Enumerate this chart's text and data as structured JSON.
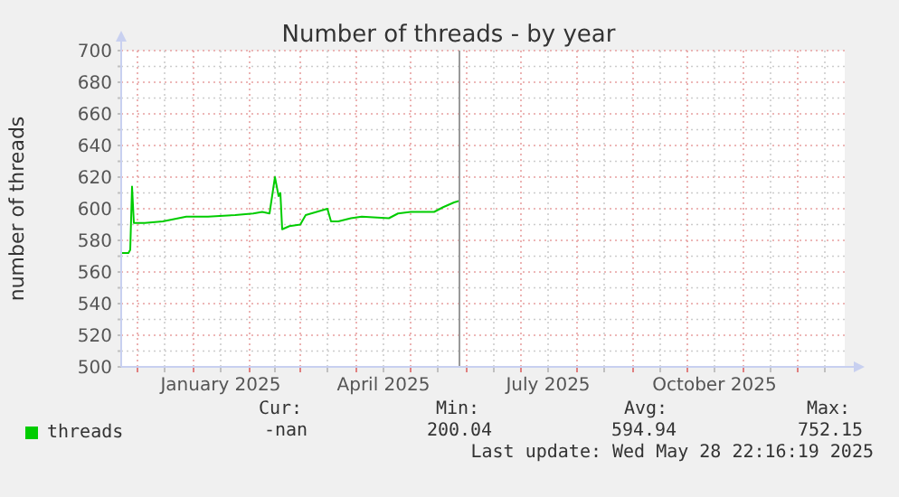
{
  "chart_data": {
    "type": "line",
    "title": "Number of threads - by year",
    "ylabel": "number of threads",
    "x": [
      "2024-11-22",
      "2024-11-26",
      "2024-11-27",
      "2024-11-28",
      "2024-11-29",
      "2024-12-05",
      "2024-12-15",
      "2024-12-28",
      "2025-01-09",
      "2025-01-24",
      "2025-02-03",
      "2025-02-08",
      "2025-02-12",
      "2025-02-15",
      "2025-02-17",
      "2025-02-18",
      "2025-02-19",
      "2025-02-23",
      "2025-03-01",
      "2025-03-04",
      "2025-03-10",
      "2025-03-16",
      "2025-03-18",
      "2025-03-22",
      "2025-03-29",
      "2025-04-04",
      "2025-04-19",
      "2025-04-24",
      "2025-05-01",
      "2025-05-14",
      "2025-05-19",
      "2025-05-25",
      "2025-05-28"
    ],
    "series": [
      {
        "name": "threads",
        "color": "#00cc00",
        "values": [
          572,
          572,
          574,
          614,
          591,
          591,
          592,
          595,
          595,
          596,
          597,
          598,
          597,
          620,
          608,
          610,
          587,
          589,
          590,
          596,
          598,
          600,
          592,
          592,
          594,
          595,
          594,
          597,
          598,
          598,
          601,
          604,
          605
        ]
      }
    ],
    "xlim": [
      "2024-11-22",
      "2025-12-27"
    ],
    "xticks": [
      {
        "value": "2024-12-01",
        "label": null
      },
      {
        "value": "2024-12-16",
        "label": null
      },
      {
        "value": "2025-01-01",
        "label": null
      },
      {
        "value": "2025-01-16",
        "label": "January 2025"
      },
      {
        "value": "2025-02-01",
        "label": null
      },
      {
        "value": "2025-02-15",
        "label": null
      },
      {
        "value": "2025-03-01",
        "label": null
      },
      {
        "value": "2025-03-16",
        "label": null
      },
      {
        "value": "2025-04-01",
        "label": null
      },
      {
        "value": "2025-04-16",
        "label": "April 2025"
      },
      {
        "value": "2025-05-01",
        "label": null
      },
      {
        "value": "2025-05-16",
        "label": null
      },
      {
        "value": "2025-06-01",
        "label": null
      },
      {
        "value": "2025-06-16",
        "label": null
      },
      {
        "value": "2025-07-01",
        "label": null
      },
      {
        "value": "2025-07-16",
        "label": "July 2025"
      },
      {
        "value": "2025-08-01",
        "label": null
      },
      {
        "value": "2025-08-16",
        "label": null
      },
      {
        "value": "2025-09-01",
        "label": null
      },
      {
        "value": "2025-09-16",
        "label": null
      },
      {
        "value": "2025-10-01",
        "label": null
      },
      {
        "value": "2025-10-16",
        "label": "October 2025"
      },
      {
        "value": "2025-11-01",
        "label": null
      },
      {
        "value": "2025-11-16",
        "label": null
      },
      {
        "value": "2025-12-01",
        "label": null
      },
      {
        "value": "2025-12-16",
        "label": null
      }
    ],
    "ylim": [
      500,
      700
    ],
    "yticks": [
      500,
      {
        "value": 510,
        "label": null
      },
      520,
      {
        "value": 530,
        "label": null
      },
      540,
      {
        "value": 550,
        "label": null
      },
      560,
      {
        "value": 570,
        "label": null
      },
      580,
      {
        "value": 590,
        "label": null
      },
      600,
      {
        "value": 610,
        "label": null
      },
      620,
      {
        "value": 630,
        "label": null
      },
      640,
      {
        "value": 650,
        "label": null
      },
      660,
      {
        "value": 670,
        "label": null
      },
      680,
      {
        "value": 690,
        "label": null
      },
      700
    ],
    "grid": true,
    "legend": "bottom",
    "ref_lines": [
      {
        "axis": "x",
        "value": "2025-05-28",
        "color": "#999999"
      }
    ],
    "annotations": [
      "Cur:",
      "Min:",
      "Avg:",
      "Max:",
      "-nan",
      "200.04",
      "594.94",
      "752.15",
      "Last update: Wed May 28 22:16:19 2025"
    ]
  }
}
